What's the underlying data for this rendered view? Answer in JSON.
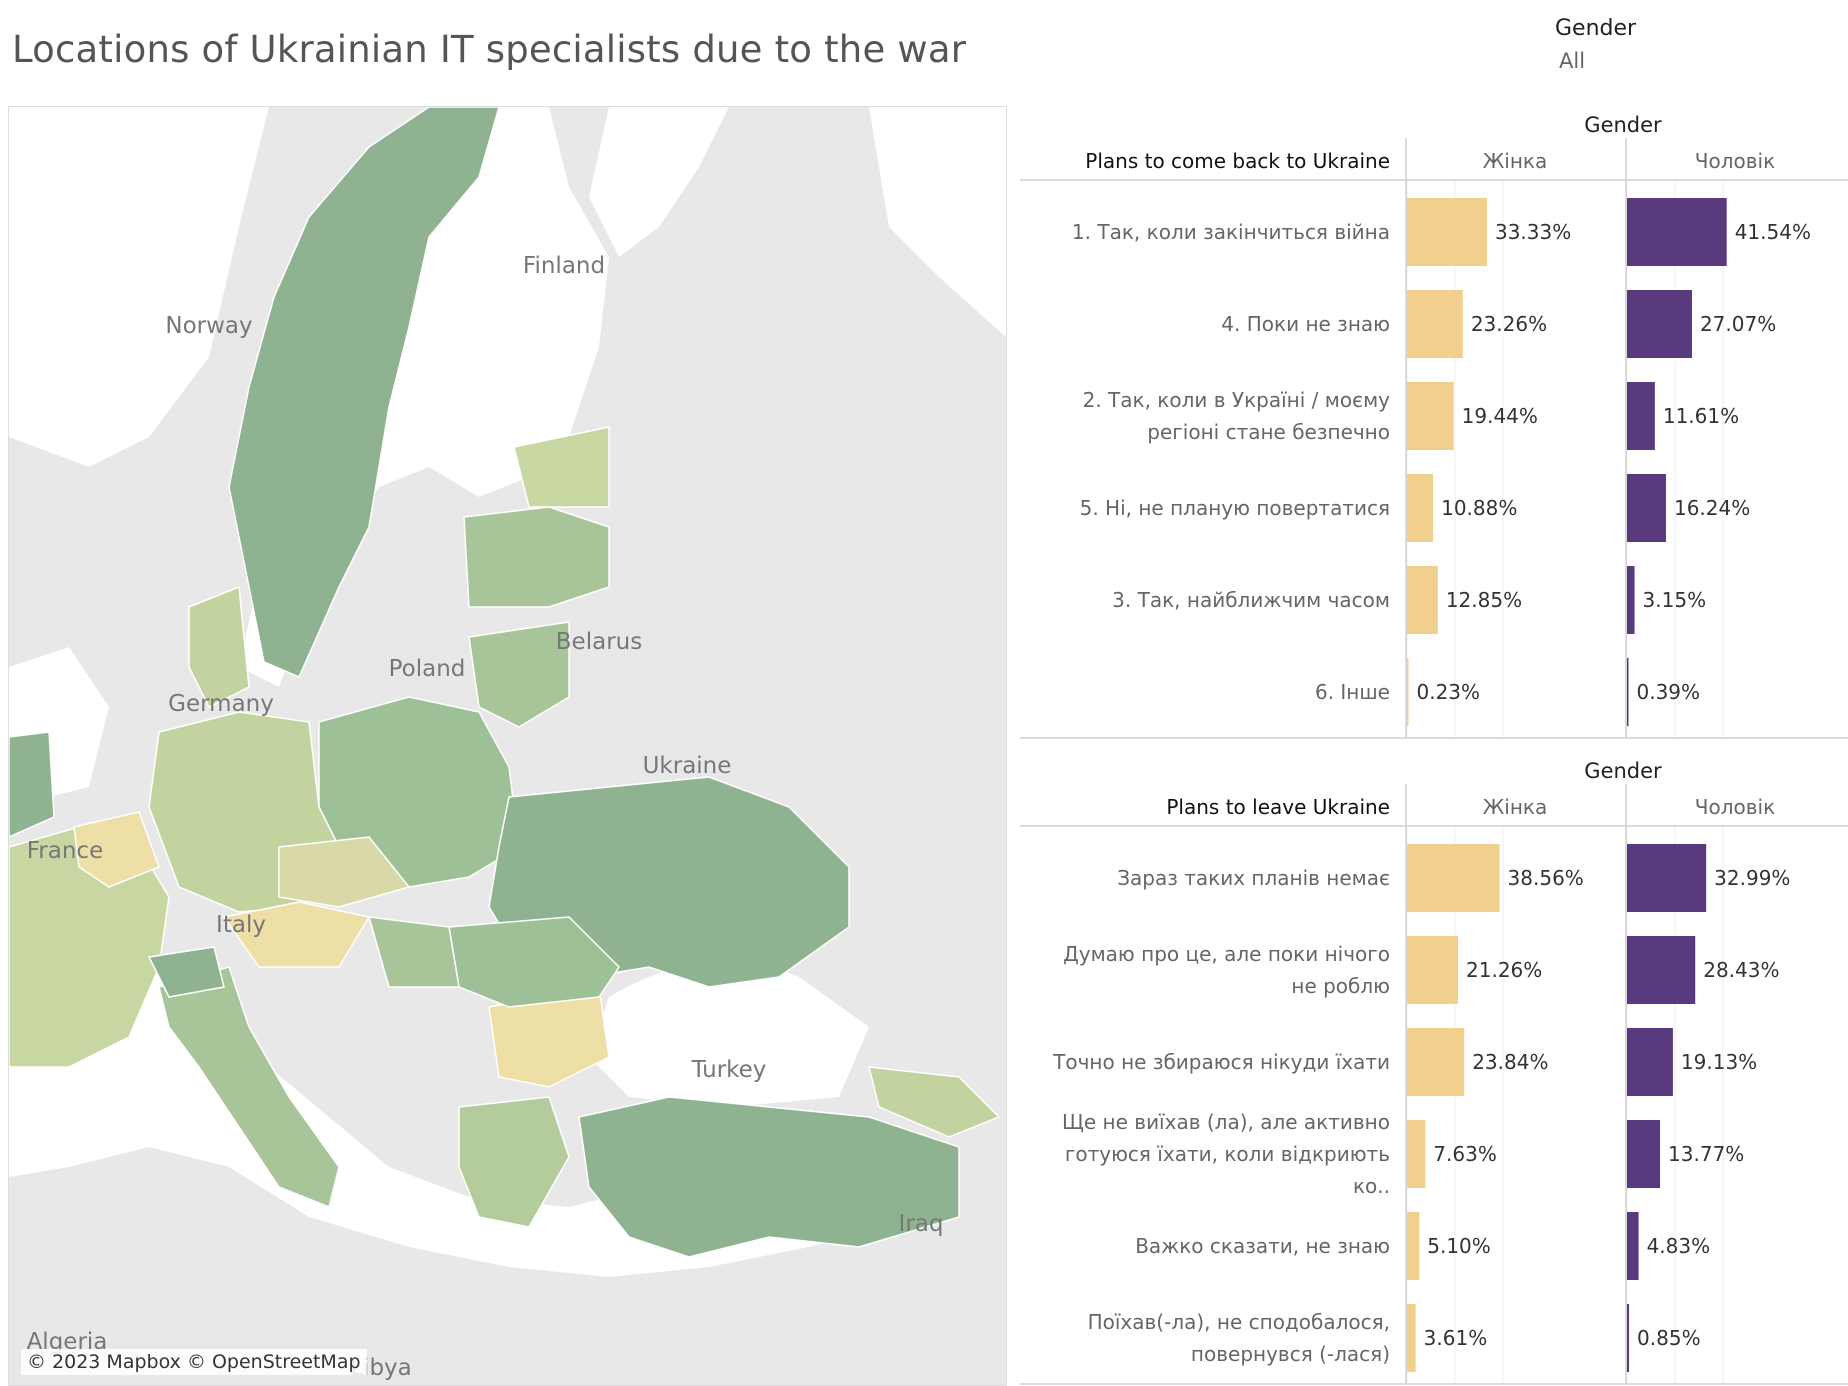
{
  "title": "Locations of Ukrainian IT specialists due to the war",
  "filter": {
    "label": "Gender",
    "value": "All"
  },
  "map": {
    "credit": "© 2023 Mapbox © OpenStreetMap",
    "labels": [
      "Norway",
      "Finland",
      "Belarus",
      "Poland",
      "Germany",
      "Ukraine",
      "France",
      "Italy",
      "Turkey",
      "Iraq",
      "Algeria",
      "Libya"
    ]
  },
  "colors": {
    "zhinka": "#f1cf8c",
    "cholovik": "#5a3a7e"
  },
  "chart_data": [
    {
      "type": "bar",
      "title": "Gender",
      "row_header": "Plans to come back to Ukraine",
      "columns": [
        "Жінка",
        "Чоловік"
      ],
      "categories": [
        "1. Так, коли закінчиться війна",
        "4. Поки не знаю",
        "2. Так, коли в Україні / моєму регіоні стане безпечно",
        "5. Ні, не планую повертатися",
        "3. Так, найближчим часом",
        "6. Інше"
      ],
      "series": [
        {
          "name": "Жінка",
          "values": [
            33.33,
            23.26,
            19.44,
            10.88,
            12.85,
            0.23
          ]
        },
        {
          "name": "Чоловік",
          "values": [
            41.54,
            27.07,
            11.61,
            16.24,
            3.15,
            0.39
          ]
        }
      ],
      "value_labels": {
        "Жінка": [
          "33.33%",
          "23.26%",
          "19.44%",
          "10.88%",
          "12.85%",
          "0.23%"
        ],
        "Чоловік": [
          "41.54%",
          "27.07%",
          "11.61%",
          "16.24%",
          "3.15%",
          "0.39%"
        ]
      }
    },
    {
      "type": "bar",
      "title": "Gender",
      "row_header": "Plans to leave Ukraine",
      "columns": [
        "Жінка",
        "Чоловік"
      ],
      "categories": [
        "Зараз таких планів немає",
        "Думаю про це, але поки нічого не роблю",
        "Точно не збираюся нікуди їхати",
        "Ще не виїхав (ла), але активно готуюся  їхати, коли відкриють ко..",
        "Важко сказати, не знаю",
        "Поїхав(-ла), не сподобалося, повернувся (-лася)"
      ],
      "series": [
        {
          "name": "Жінка",
          "values": [
            38.56,
            21.26,
            23.84,
            7.63,
            5.1,
            3.61
          ]
        },
        {
          "name": "Чоловік",
          "values": [
            32.99,
            28.43,
            19.13,
            13.77,
            4.83,
            0.85
          ]
        }
      ],
      "value_labels": {
        "Жінка": [
          "38.56%",
          "21.26%",
          "23.84%",
          "7.63%",
          "5.10%",
          "3.61%"
        ],
        "Чоловік": [
          "32.99%",
          "28.43%",
          "19.13%",
          "13.77%",
          "4.83%",
          "0.85%"
        ]
      }
    }
  ]
}
